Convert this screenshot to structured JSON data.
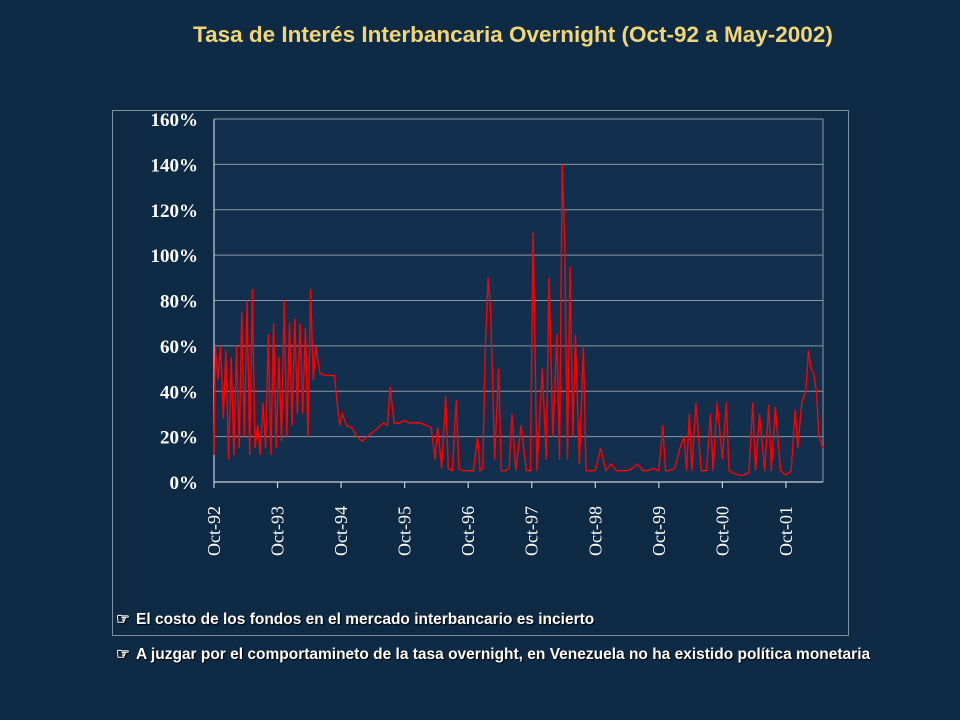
{
  "title": "Tasa de Interés Interbancaria Overnight (Oct-92 a May-2002)",
  "bullets": [
    {
      "icon": "pointing-hand-icon",
      "text": "El costo de los fondos en el mercado interbancario es incierto"
    },
    {
      "icon": "pointing-hand-icon",
      "text": "A juzgar por el comportamineto de la tasa overnight, en Venezuela no ha existido política monetaria"
    }
  ],
  "colors": {
    "background": "#0e2a45",
    "title": "#f2d675",
    "series": "#ff0000",
    "plot_bg": "#12304d"
  },
  "chart_data": {
    "type": "line",
    "title": "",
    "xlabel": "",
    "ylabel": "",
    "ylim": [
      0,
      160
    ],
    "yticks": [
      0,
      20,
      40,
      60,
      80,
      100,
      120,
      140,
      160
    ],
    "ytick_labels": [
      "0%",
      "20%",
      "40%",
      "60%",
      "80%",
      "100%",
      "120%",
      "140%",
      "160%"
    ],
    "xtick_labels": [
      "Oct-92",
      "Oct-93",
      "Oct-94",
      "Oct-95",
      "Oct-96",
      "Oct-97",
      "Oct-98",
      "Oct-99",
      "Oct-00",
      "Oct-01"
    ],
    "xrange_months": [
      "1992-10",
      "2002-05"
    ],
    "grid": true,
    "series": [
      {
        "values_percent_by_date": [
          [
            "1992-10",
            12
          ],
          [
            "1992-10",
            60
          ],
          [
            "1992-11",
            45
          ],
          [
            "1992-11",
            60
          ],
          [
            "1992-12",
            28
          ],
          [
            "1992-12",
            58
          ],
          [
            "1993-01",
            10
          ],
          [
            "1993-01",
            55
          ],
          [
            "1993-02",
            12
          ],
          [
            "1993-02",
            60
          ],
          [
            "1993-03",
            15
          ],
          [
            "1993-03",
            75
          ],
          [
            "1993-04",
            20
          ],
          [
            "1993-04",
            80
          ],
          [
            "1993-05",
            12
          ],
          [
            "1993-05",
            85
          ],
          [
            "1993-06",
            15
          ],
          [
            "1993-06",
            25
          ],
          [
            "1993-07",
            12
          ],
          [
            "1993-07",
            35
          ],
          [
            "1993-08",
            15
          ],
          [
            "1993-08",
            65
          ],
          [
            "1993-09",
            12
          ],
          [
            "1993-09",
            70
          ],
          [
            "1993-10",
            15
          ],
          [
            "1993-10",
            55
          ],
          [
            "1993-11",
            18
          ],
          [
            "1993-11",
            80
          ],
          [
            "1993-12",
            20
          ],
          [
            "1993-12",
            70
          ],
          [
            "1994-01",
            25
          ],
          [
            "1994-01",
            72
          ],
          [
            "1994-02",
            30
          ],
          [
            "1994-02",
            70
          ],
          [
            "1994-03",
            30
          ],
          [
            "1994-03",
            68
          ],
          [
            "1994-04",
            20
          ],
          [
            "1994-04",
            85
          ],
          [
            "1994-05",
            45
          ],
          [
            "1994-05",
            60
          ],
          [
            "1994-06",
            48
          ],
          [
            "1994-07",
            47
          ],
          [
            "1994-08",
            47
          ],
          [
            "1994-09",
            47
          ],
          [
            "1994-09",
            35
          ],
          [
            "1994-10",
            25
          ],
          [
            "1994-10",
            30
          ],
          [
            "1994-11",
            25
          ],
          [
            "1994-12",
            24
          ],
          [
            "1995-01",
            20
          ],
          [
            "1995-02",
            18
          ],
          [
            "1995-03",
            20
          ],
          [
            "1995-04",
            22
          ],
          [
            "1995-05",
            24
          ],
          [
            "1995-06",
            26
          ],
          [
            "1995-07",
            25
          ],
          [
            "1995-07",
            42
          ],
          [
            "1995-08",
            26
          ],
          [
            "1995-09",
            26
          ],
          [
            "1995-10",
            27
          ],
          [
            "1995-11",
            26
          ],
          [
            "1995-12",
            26
          ],
          [
            "1996-01",
            26
          ],
          [
            "1996-02",
            25
          ],
          [
            "1996-03",
            24
          ],
          [
            "1996-04",
            10
          ],
          [
            "1996-04",
            24
          ],
          [
            "1996-05",
            6
          ],
          [
            "1996-06",
            38
          ],
          [
            "1996-06",
            6
          ],
          [
            "1996-07",
            5
          ],
          [
            "1996-08",
            36
          ],
          [
            "1996-08",
            6
          ],
          [
            "1996-09",
            5
          ],
          [
            "1996-10",
            5
          ],
          [
            "1996-11",
            5
          ],
          [
            "1996-12",
            20
          ],
          [
            "1996-12",
            5
          ],
          [
            "1997-01",
            6
          ],
          [
            "1997-01",
            60
          ],
          [
            "1997-02",
            90
          ],
          [
            "1997-02",
            75
          ],
          [
            "1997-03",
            10
          ],
          [
            "1997-04",
            50
          ],
          [
            "1997-04",
            5
          ],
          [
            "1997-05",
            5
          ],
          [
            "1997-06",
            6
          ],
          [
            "1997-06",
            30
          ],
          [
            "1997-07",
            5
          ],
          [
            "1997-08",
            25
          ],
          [
            "1997-09",
            5
          ],
          [
            "1997-10",
            5
          ],
          [
            "1997-10",
            110
          ],
          [
            "1997-11",
            5
          ],
          [
            "1997-12",
            50
          ],
          [
            "1998-01",
            10
          ],
          [
            "1998-01",
            90
          ],
          [
            "1998-02",
            20
          ],
          [
            "1998-03",
            65
          ],
          [
            "1998-03",
            10
          ],
          [
            "1998-04",
            140
          ],
          [
            "1998-04",
            105
          ],
          [
            "1998-05",
            10
          ],
          [
            "1998-05",
            95
          ],
          [
            "1998-06",
            20
          ],
          [
            "1998-06",
            65
          ],
          [
            "1998-07",
            8
          ],
          [
            "1998-08",
            60
          ],
          [
            "1998-08",
            5
          ],
          [
            "1998-09",
            5
          ],
          [
            "1998-10",
            5
          ],
          [
            "1998-11",
            15
          ],
          [
            "1998-12",
            5
          ],
          [
            "1999-01",
            8
          ],
          [
            "1999-02",
            5
          ],
          [
            "1999-03",
            5
          ],
          [
            "1999-04",
            5
          ],
          [
            "1999-05",
            6
          ],
          [
            "1999-06",
            8
          ],
          [
            "1999-07",
            5
          ],
          [
            "1999-08",
            5
          ],
          [
            "1999-09",
            6
          ],
          [
            "1999-10",
            5
          ],
          [
            "1999-11",
            25
          ],
          [
            "1999-11",
            5
          ],
          [
            "1999-12",
            5
          ],
          [
            "2000-01",
            6
          ],
          [
            "2000-02",
            15
          ],
          [
            "2000-03",
            20
          ],
          [
            "2000-03",
            5
          ],
          [
            "2000-04",
            30
          ],
          [
            "2000-04",
            5
          ],
          [
            "2000-05",
            35
          ],
          [
            "2000-06",
            5
          ],
          [
            "2000-07",
            5
          ],
          [
            "2000-08",
            30
          ],
          [
            "2000-08",
            5
          ],
          [
            "2000-09",
            35
          ],
          [
            "2000-10",
            10
          ],
          [
            "2000-11",
            35
          ],
          [
            "2000-11",
            5
          ],
          [
            "2000-12",
            4
          ],
          [
            "2001-01",
            3
          ],
          [
            "2001-02",
            3
          ],
          [
            "2001-03",
            4
          ],
          [
            "2001-04",
            35
          ],
          [
            "2001-04",
            5
          ],
          [
            "2001-05",
            30
          ],
          [
            "2001-06",
            5
          ],
          [
            "2001-07",
            34
          ],
          [
            "2001-07",
            5
          ],
          [
            "2001-08",
            33
          ],
          [
            "2001-09",
            5
          ],
          [
            "2001-10",
            3
          ],
          [
            "2001-11",
            5
          ],
          [
            "2001-12",
            32
          ],
          [
            "2001-12",
            15
          ],
          [
            "2002-01",
            35
          ],
          [
            "2002-02",
            40
          ],
          [
            "2002-02",
            58
          ],
          [
            "2002-03",
            50
          ],
          [
            "2002-03",
            48
          ],
          [
            "2002-04",
            40
          ],
          [
            "2002-04",
            20
          ],
          [
            "2002-05",
            15
          ]
        ]
      }
    ]
  }
}
